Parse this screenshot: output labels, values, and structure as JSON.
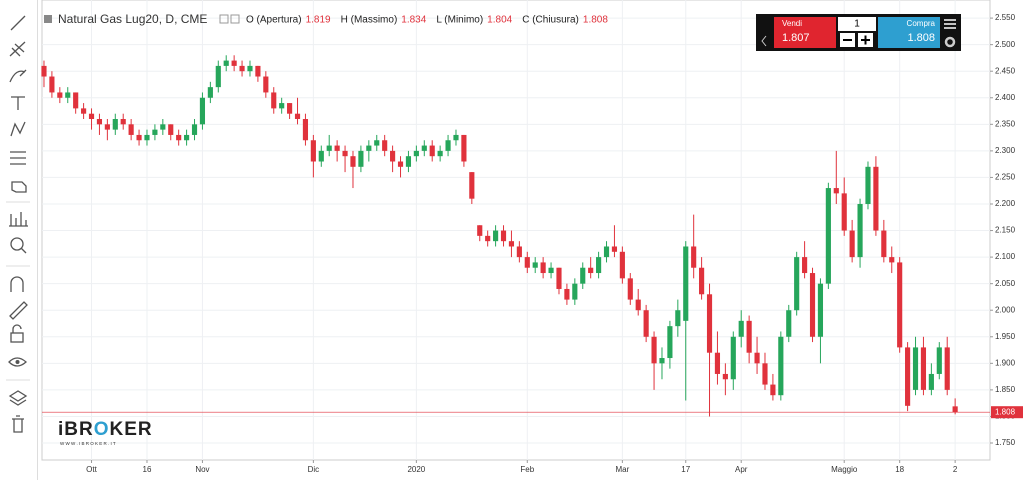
{
  "chart_data": {
    "type": "candlestick",
    "title": "Natural Gas Lug20, D, CME",
    "ohlc_labels": [
      "O (Apertura)",
      "H (Massimo)",
      "L (Minimo)",
      "C (Chiusura)"
    ],
    "up_color": "#26a65b",
    "down_color": "#e0323c",
    "candles": [
      [
        2.46,
        2.47,
        2.42,
        2.44
      ],
      [
        2.44,
        2.45,
        2.4,
        2.41
      ],
      [
        2.41,
        2.42,
        2.39,
        2.4
      ],
      [
        2.4,
        2.42,
        2.39,
        2.41
      ],
      [
        2.41,
        2.41,
        2.37,
        2.38
      ],
      [
        2.38,
        2.39,
        2.36,
        2.37
      ],
      [
        2.37,
        2.38,
        2.34,
        2.36
      ],
      [
        2.36,
        2.37,
        2.33,
        2.35
      ],
      [
        2.35,
        2.36,
        2.32,
        2.34
      ],
      [
        2.34,
        2.37,
        2.33,
        2.36
      ],
      [
        2.36,
        2.37,
        2.34,
        2.35
      ],
      [
        2.35,
        2.36,
        2.32,
        2.33
      ],
      [
        2.33,
        2.34,
        2.31,
        2.32
      ],
      [
        2.32,
        2.34,
        2.31,
        2.33
      ],
      [
        2.33,
        2.35,
        2.32,
        2.34
      ],
      [
        2.34,
        2.36,
        2.33,
        2.35
      ],
      [
        2.35,
        2.35,
        2.32,
        2.33
      ],
      [
        2.33,
        2.34,
        2.31,
        2.32
      ],
      [
        2.32,
        2.34,
        2.31,
        2.33
      ],
      [
        2.33,
        2.36,
        2.32,
        2.35
      ],
      [
        2.35,
        2.41,
        2.34,
        2.4
      ],
      [
        2.4,
        2.43,
        2.39,
        2.42
      ],
      [
        2.42,
        2.47,
        2.41,
        2.46
      ],
      [
        2.46,
        2.48,
        2.45,
        2.47
      ],
      [
        2.47,
        2.48,
        2.45,
        2.46
      ],
      [
        2.46,
        2.47,
        2.44,
        2.45
      ],
      [
        2.45,
        2.47,
        2.44,
        2.46
      ],
      [
        2.46,
        2.46,
        2.43,
        2.44
      ],
      [
        2.44,
        2.45,
        2.4,
        2.41
      ],
      [
        2.41,
        2.42,
        2.37,
        2.38
      ],
      [
        2.38,
        2.4,
        2.37,
        2.39
      ],
      [
        2.39,
        2.39,
        2.36,
        2.37
      ],
      [
        2.37,
        2.4,
        2.35,
        2.36
      ],
      [
        2.36,
        2.37,
        2.31,
        2.32
      ],
      [
        2.32,
        2.33,
        2.25,
        2.28
      ],
      [
        2.28,
        2.31,
        2.27,
        2.3
      ],
      [
        2.3,
        2.33,
        2.29,
        2.31
      ],
      [
        2.31,
        2.32,
        2.28,
        2.3
      ],
      [
        2.3,
        2.31,
        2.26,
        2.29
      ],
      [
        2.29,
        2.3,
        2.23,
        2.27
      ],
      [
        2.27,
        2.31,
        2.26,
        2.3
      ],
      [
        2.3,
        2.32,
        2.28,
        2.31
      ],
      [
        2.31,
        2.33,
        2.3,
        2.32
      ],
      [
        2.32,
        2.33,
        2.29,
        2.3
      ],
      [
        2.3,
        2.31,
        2.26,
        2.28
      ],
      [
        2.28,
        2.29,
        2.25,
        2.27
      ],
      [
        2.27,
        2.3,
        2.26,
        2.29
      ],
      [
        2.29,
        2.31,
        2.28,
        2.3
      ],
      [
        2.3,
        2.32,
        2.29,
        2.31
      ],
      [
        2.31,
        2.32,
        2.28,
        2.29
      ],
      [
        2.29,
        2.31,
        2.28,
        2.3
      ],
      [
        2.3,
        2.33,
        2.29,
        2.32
      ],
      [
        2.32,
        2.34,
        2.31,
        2.33
      ],
      [
        2.33,
        2.33,
        2.27,
        2.28
      ],
      [
        2.26,
        2.26,
        2.2,
        2.21
      ],
      [
        2.16,
        2.16,
        2.13,
        2.14
      ],
      [
        2.14,
        2.15,
        2.12,
        2.13
      ],
      [
        2.13,
        2.16,
        2.12,
        2.15
      ],
      [
        2.15,
        2.16,
        2.12,
        2.13
      ],
      [
        2.13,
        2.15,
        2.1,
        2.12
      ],
      [
        2.12,
        2.13,
        2.09,
        2.1
      ],
      [
        2.1,
        2.11,
        2.07,
        2.08
      ],
      [
        2.08,
        2.1,
        2.07,
        2.09
      ],
      [
        2.09,
        2.1,
        2.06,
        2.07
      ],
      [
        2.07,
        2.09,
        2.06,
        2.08
      ],
      [
        2.08,
        2.08,
        2.03,
        2.04
      ],
      [
        2.04,
        2.05,
        2.01,
        2.02
      ],
      [
        2.02,
        2.06,
        2.01,
        2.05
      ],
      [
        2.05,
        2.09,
        2.04,
        2.08
      ],
      [
        2.08,
        2.1,
        2.06,
        2.07
      ],
      [
        2.07,
        2.11,
        2.06,
        2.1
      ],
      [
        2.1,
        2.13,
        2.09,
        2.12
      ],
      [
        2.12,
        2.16,
        2.1,
        2.11
      ],
      [
        2.11,
        2.12,
        2.05,
        2.06
      ],
      [
        2.06,
        2.07,
        2.01,
        2.02
      ],
      [
        2.02,
        2.04,
        1.99,
        2.0
      ],
      [
        2.0,
        2.01,
        1.94,
        1.95
      ],
      [
        1.95,
        1.96,
        1.85,
        1.9
      ],
      [
        1.9,
        1.93,
        1.87,
        1.91
      ],
      [
        1.91,
        1.98,
        1.89,
        1.97
      ],
      [
        1.97,
        2.02,
        1.95,
        2.0
      ],
      [
        1.98,
        2.13,
        1.83,
        2.12
      ],
      [
        2.12,
        2.18,
        2.06,
        2.08
      ],
      [
        2.08,
        2.1,
        2.02,
        2.03
      ],
      [
        2.03,
        2.05,
        1.8,
        1.92
      ],
      [
        1.92,
        1.96,
        1.86,
        1.88
      ],
      [
        1.88,
        1.9,
        1.84,
        1.87
      ],
      [
        1.87,
        1.96,
        1.85,
        1.95
      ],
      [
        1.95,
        2.0,
        1.93,
        1.98
      ],
      [
        1.98,
        1.99,
        1.9,
        1.92
      ],
      [
        1.92,
        1.95,
        1.88,
        1.9
      ],
      [
        1.9,
        1.92,
        1.85,
        1.86
      ],
      [
        1.86,
        1.88,
        1.83,
        1.84
      ],
      [
        1.84,
        1.96,
        1.83,
        1.95
      ],
      [
        1.95,
        2.01,
        1.94,
        2.0
      ],
      [
        2.0,
        2.11,
        1.99,
        2.1
      ],
      [
        2.1,
        2.13,
        2.06,
        2.07
      ],
      [
        2.07,
        2.08,
        1.94,
        1.95
      ],
      [
        1.95,
        2.06,
        1.9,
        2.05
      ],
      [
        2.05,
        2.24,
        2.04,
        2.23
      ],
      [
        2.23,
        2.3,
        2.2,
        2.22
      ],
      [
        2.22,
        2.25,
        2.14,
        2.15
      ],
      [
        2.15,
        2.17,
        2.09,
        2.1
      ],
      [
        2.1,
        2.21,
        2.08,
        2.2
      ],
      [
        2.2,
        2.28,
        2.19,
        2.27
      ],
      [
        2.27,
        2.29,
        2.14,
        2.15
      ],
      [
        2.15,
        2.17,
        2.09,
        2.1
      ],
      [
        2.1,
        2.12,
        2.07,
        2.09
      ],
      [
        2.09,
        2.1,
        1.92,
        1.93
      ],
      [
        1.93,
        1.94,
        1.81,
        1.82
      ],
      [
        1.85,
        1.95,
        1.84,
        1.93
      ],
      [
        1.93,
        1.95,
        1.84,
        1.85
      ],
      [
        1.85,
        1.9,
        1.84,
        1.88
      ],
      [
        1.88,
        1.94,
        1.87,
        1.93
      ],
      [
        1.93,
        1.95,
        1.84,
        1.85
      ],
      [
        1.819,
        1.834,
        1.804,
        1.808
      ]
    ],
    "xlim": [
      -0.25,
      119.4
    ],
    "xticks": [
      {
        "value": 6,
        "label": "Ott"
      },
      {
        "value": 13,
        "label": "16"
      },
      {
        "value": 20,
        "label": "Nov"
      },
      {
        "value": 34,
        "label": "Dic"
      },
      {
        "value": 47,
        "label": "2020"
      },
      {
        "value": 61,
        "label": "Feb"
      },
      {
        "value": 73,
        "label": "Mar"
      },
      {
        "value": 81,
        "label": "17"
      },
      {
        "value": 88,
        "label": "Apr"
      },
      {
        "value": 101,
        "label": "Maggio"
      },
      {
        "value": 108,
        "label": "18"
      },
      {
        "value": 115,
        "label": "2"
      }
    ],
    "ylim": [
      1.718,
      2.569
    ],
    "yticks": [
      {
        "value": 1.75,
        "label": "1.750"
      },
      {
        "value": 1.8,
        "label": "1.800"
      },
      {
        "value": 1.85,
        "label": "1.850"
      },
      {
        "value": 1.9,
        "label": "1.900"
      },
      {
        "value": 1.95,
        "label": "1.950"
      },
      {
        "value": 2.0,
        "label": "2.000"
      },
      {
        "value": 2.05,
        "label": "2.050"
      },
      {
        "value": 2.1,
        "label": "2.100"
      },
      {
        "value": 2.15,
        "label": "2.150"
      },
      {
        "value": 2.2,
        "label": "2.200"
      },
      {
        "value": 2.25,
        "label": "2.250"
      },
      {
        "value": 2.3,
        "label": "2.300"
      },
      {
        "value": 2.35,
        "label": "2.350"
      },
      {
        "value": 2.4,
        "label": "2.400"
      },
      {
        "value": 2.45,
        "label": "2.450"
      },
      {
        "value": 2.5,
        "label": "2.500"
      },
      {
        "value": 2.55,
        "label": "2.550"
      }
    ],
    "grid": true
  },
  "trade_panel": {
    "sell_label": "Vendi",
    "sell_price": "1.807",
    "quantity": "1",
    "buy_label": "Compra",
    "buy_price": "1.808"
  },
  "logo": {
    "parts": [
      "iBR",
      "O",
      "KER"
    ],
    "url": "W W W . I B R O K E R . I T"
  }
}
